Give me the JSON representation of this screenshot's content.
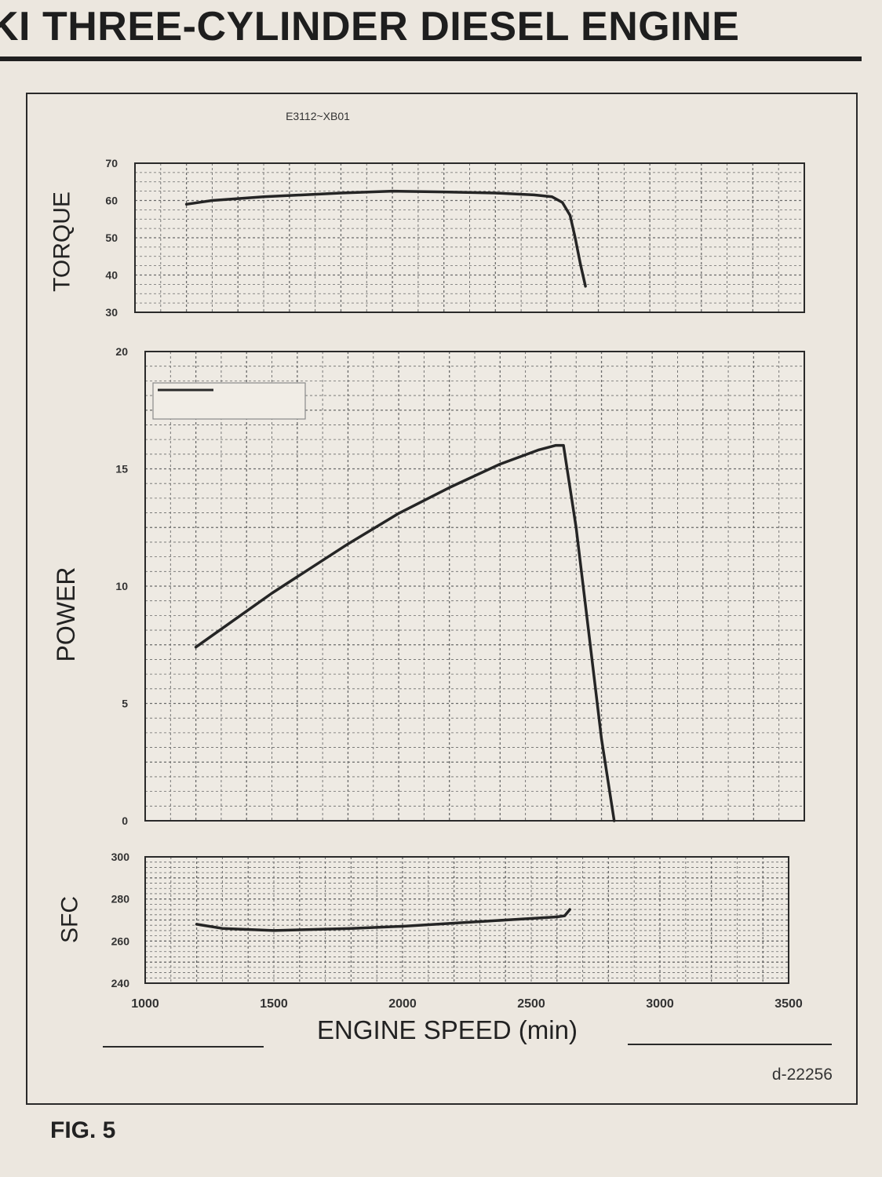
{
  "header": {
    "title": "KI THREE-CYLINDER DIESEL ENGINE"
  },
  "figure": {
    "label": "FIG. 5",
    "model_code": "E3112~XB01",
    "ref_code": "d-22256"
  },
  "colors": {
    "background": "#ece7df",
    "ink": "#2a2a2a",
    "grid": "#6a6a6a"
  },
  "chart_data": [
    {
      "id": "torque",
      "type": "line",
      "ylabel": "TORQUE",
      "xlim": [
        1000,
        3600
      ],
      "ylim": [
        30,
        70
      ],
      "yticks": [
        70,
        60,
        50,
        40,
        30
      ],
      "grid": true,
      "series": [
        {
          "x": [
            1200,
            1300,
            1500,
            1800,
            2000,
            2200,
            2400,
            2550,
            2620,
            2660,
            2690,
            2710,
            2730,
            2750
          ],
          "y": [
            59,
            60,
            61,
            62,
            62.5,
            62.3,
            62,
            61.5,
            61,
            59.5,
            56,
            50,
            43,
            37
          ]
        }
      ]
    },
    {
      "id": "power",
      "type": "line",
      "ylabel": "POWER",
      "xlim": [
        1000,
        3600
      ],
      "ylim": [
        0,
        20
      ],
      "yticks": [
        20,
        15,
        10,
        5,
        0
      ],
      "grid": true,
      "legend": "top-left",
      "series": [
        {
          "x": [
            1200,
            1500,
            1800,
            2000,
            2200,
            2400,
            2550,
            2620,
            2650,
            2700,
            2750,
            2800,
            2850
          ],
          "y": [
            7.4,
            9.7,
            11.8,
            13.1,
            14.2,
            15.2,
            15.8,
            16.0,
            16.0,
            12.5,
            8.0,
            3.5,
            0
          ]
        }
      ]
    },
    {
      "id": "sfc",
      "type": "line",
      "ylabel": "SFC",
      "xlabel": "ENGINE SPEED (min)",
      "xlim": [
        1000,
        3500
      ],
      "ylim": [
        240,
        300
      ],
      "yticks": [
        300,
        280,
        260,
        240
      ],
      "xticks": [
        1000,
        1500,
        2000,
        2500,
        3000,
        3500
      ],
      "grid": true,
      "series": [
        {
          "x": [
            1200,
            1300,
            1500,
            1800,
            2000,
            2200,
            2400,
            2600,
            2630,
            2650
          ],
          "y": [
            268,
            266,
            265,
            266,
            267,
            268.5,
            270,
            271.5,
            272,
            275
          ]
        }
      ]
    }
  ]
}
